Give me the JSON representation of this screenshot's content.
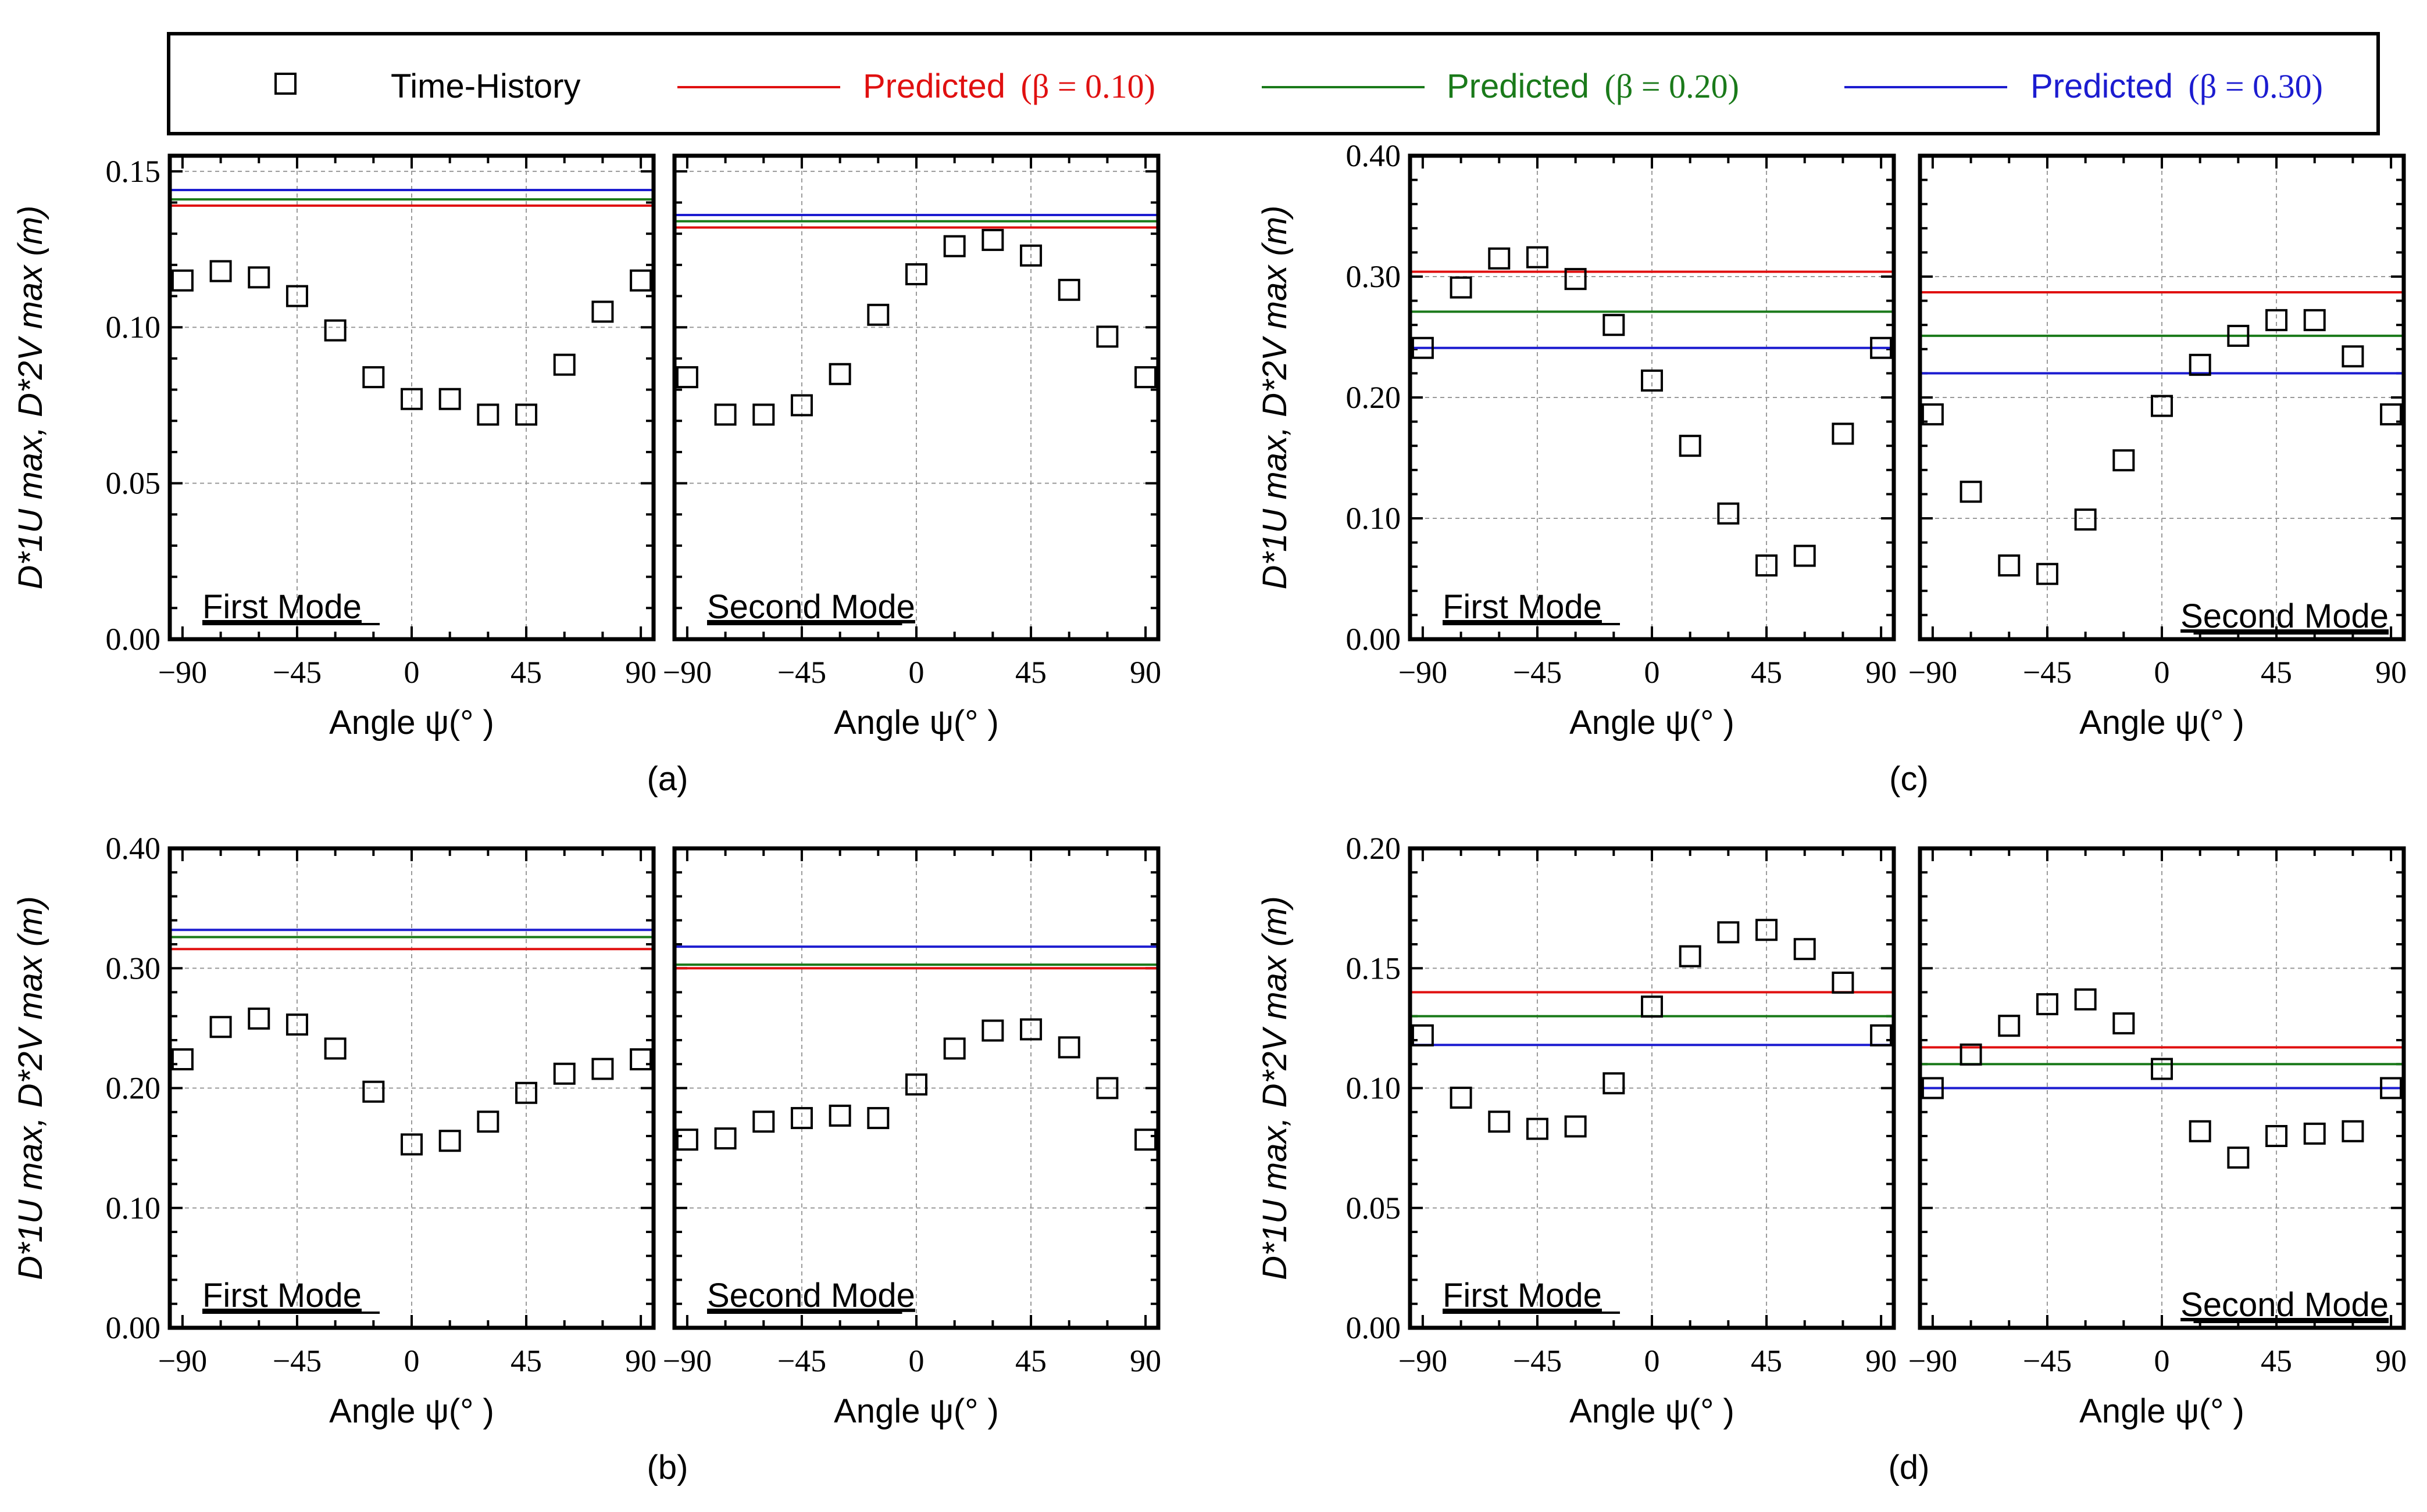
{
  "legend": {
    "time_history": "Time-History",
    "predicted_word": "Predicted",
    "beta_labels": [
      "(β = 0.10)",
      "(β = 0.20)",
      "(β = 0.30)"
    ]
  },
  "colors": {
    "beta_0_10": "#e01010",
    "beta_0_20": "#1a7a1a",
    "beta_0_30": "#1c1cd0",
    "axis": "#000000",
    "grid": "#9a9a9a"
  },
  "icons": {
    "time_history_marker": "open-square-icon"
  },
  "axis_text": {
    "xlabel": "Angle ψ(°  )",
    "ylabel": "D*1U max, D*2V max (m)"
  },
  "panel_captions": [
    "(a)",
    "(b)",
    "(c)",
    "(d)"
  ],
  "chart_data": [
    {
      "type": "scatter",
      "panel": "(a)",
      "ylim": [
        0,
        0.155
      ],
      "yticks": [
        0.0,
        0.05,
        0.1,
        0.15
      ],
      "subplots": [
        {
          "label": "First Mode",
          "x": [
            -90,
            -75,
            -60,
            -45,
            -30,
            -15,
            0,
            15,
            30,
            45,
            60,
            75,
            90
          ],
          "y": [
            0.115,
            0.118,
            0.116,
            0.11,
            0.099,
            0.084,
            0.077,
            0.077,
            0.072,
            0.072,
            0.088,
            0.105,
            0.115
          ],
          "predicted": {
            "beta_0_10": 0.139,
            "beta_0_20": 0.141,
            "beta_0_30": 0.144
          }
        },
        {
          "label": "Second Mode",
          "x": [
            -90,
            -75,
            -60,
            -45,
            -30,
            -15,
            0,
            15,
            30,
            45,
            60,
            75,
            90
          ],
          "y": [
            0.084,
            0.072,
            0.072,
            0.075,
            0.085,
            0.104,
            0.117,
            0.126,
            0.128,
            0.123,
            0.112,
            0.097,
            0.084
          ],
          "predicted": {
            "beta_0_10": 0.132,
            "beta_0_20": 0.134,
            "beta_0_30": 0.136
          }
        }
      ]
    },
    {
      "type": "scatter",
      "panel": "(b)",
      "ylim": [
        0,
        0.4
      ],
      "yticks": [
        0.0,
        0.1,
        0.2,
        0.3,
        0.4
      ],
      "subplots": [
        {
          "label": "First Mode",
          "x": [
            -90,
            -75,
            -60,
            -45,
            -30,
            -15,
            0,
            15,
            30,
            45,
            60,
            75,
            90
          ],
          "y": [
            0.224,
            0.251,
            0.258,
            0.253,
            0.233,
            0.197,
            0.153,
            0.156,
            0.172,
            0.196,
            0.212,
            0.216,
            0.224
          ],
          "predicted": {
            "beta_0_10": 0.316,
            "beta_0_20": 0.326,
            "beta_0_30": 0.332
          }
        },
        {
          "label": "Second Mode",
          "x": [
            -90,
            -75,
            -60,
            -45,
            -30,
            -15,
            0,
            15,
            30,
            45,
            60,
            75,
            90
          ],
          "y": [
            0.157,
            0.158,
            0.172,
            0.175,
            0.177,
            0.175,
            0.203,
            0.233,
            0.248,
            0.249,
            0.234,
            0.2,
            0.157
          ],
          "predicted": {
            "beta_0_10": 0.3,
            "beta_0_20": 0.303,
            "beta_0_30": 0.318
          }
        }
      ]
    },
    {
      "type": "scatter",
      "panel": "(c)",
      "ylim": [
        0,
        0.4
      ],
      "yticks": [
        0.0,
        0.1,
        0.2,
        0.3,
        0.4
      ],
      "subplots": [
        {
          "label": "First Mode",
          "x": [
            -90,
            -75,
            -60,
            -45,
            -30,
            -15,
            0,
            15,
            30,
            45,
            60,
            75,
            90
          ],
          "y": [
            0.241,
            0.291,
            0.315,
            0.316,
            0.298,
            0.26,
            0.214,
            0.16,
            0.104,
            0.061,
            0.069,
            0.17,
            0.241
          ],
          "predicted": {
            "beta_0_10": 0.304,
            "beta_0_20": 0.271,
            "beta_0_30": 0.241
          }
        },
        {
          "label": "Second Mode",
          "x": [
            -90,
            -75,
            -60,
            -45,
            -30,
            -15,
            0,
            15,
            30,
            45,
            60,
            75,
            90
          ],
          "y": [
            0.186,
            0.122,
            0.061,
            0.054,
            0.099,
            0.148,
            0.193,
            0.227,
            0.251,
            0.264,
            0.264,
            0.234,
            0.186
          ],
          "predicted": {
            "beta_0_10": 0.287,
            "beta_0_20": 0.251,
            "beta_0_30": 0.22
          }
        }
      ]
    },
    {
      "type": "scatter",
      "panel": "(d)",
      "ylim": [
        0,
        0.2
      ],
      "yticks": [
        0.0,
        0.05,
        0.1,
        0.15,
        0.2
      ],
      "subplots": [
        {
          "label": "First Mode",
          "x": [
            -90,
            -75,
            -60,
            -45,
            -30,
            -15,
            0,
            15,
            30,
            45,
            60,
            75,
            90
          ],
          "y": [
            0.122,
            0.096,
            0.086,
            0.083,
            0.084,
            0.102,
            0.134,
            0.155,
            0.165,
            0.166,
            0.158,
            0.144,
            0.122
          ],
          "predicted": {
            "beta_0_10": 0.14,
            "beta_0_20": 0.13,
            "beta_0_30": 0.118
          }
        },
        {
          "label": "Second Mode",
          "x": [
            -90,
            -75,
            -60,
            -45,
            -30,
            -15,
            0,
            15,
            30,
            45,
            60,
            75,
            90
          ],
          "y": [
            0.1,
            0.114,
            0.126,
            0.135,
            0.137,
            0.127,
            0.108,
            0.082,
            0.071,
            0.08,
            0.081,
            0.082,
            0.1
          ],
          "predicted": {
            "beta_0_10": 0.117,
            "beta_0_20": 0.11,
            "beta_0_30": 0.1
          }
        }
      ]
    }
  ],
  "x_axis": {
    "xlim": [
      -95,
      95
    ],
    "xticks": [
      -90,
      -45,
      0,
      45,
      90
    ],
    "xtick_labels": [
      "−90",
      "−45",
      "0",
      "45",
      "90"
    ]
  }
}
